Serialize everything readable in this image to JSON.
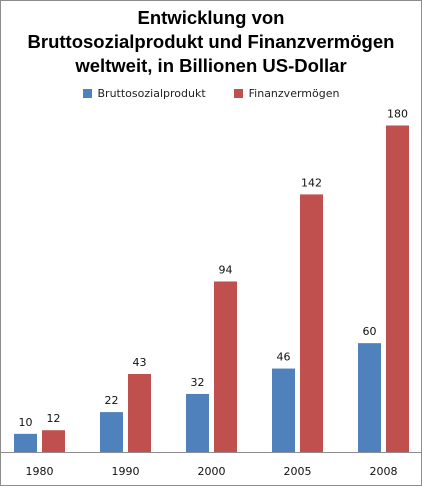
{
  "chart_data": {
    "type": "bar",
    "title_lines": [
      "Entwicklung von",
      "Bruttosozialprodukt und Finanzvermögen",
      "weltweit, in Billionen US-Dollar"
    ],
    "categories": [
      "1980",
      "1990",
      "2000",
      "2005",
      "2008"
    ],
    "series": [
      {
        "name": "Bruttosozialprodukt",
        "color": "#4f81bd",
        "values": [
          10,
          22,
          32,
          46,
          60
        ]
      },
      {
        "name": "Finanzvermögen",
        "color": "#c0504d",
        "values": [
          12,
          43,
          94,
          142,
          180
        ]
      }
    ],
    "ylim": [
      0,
      180
    ],
    "grid": false,
    "legend_position": "top-center"
  }
}
